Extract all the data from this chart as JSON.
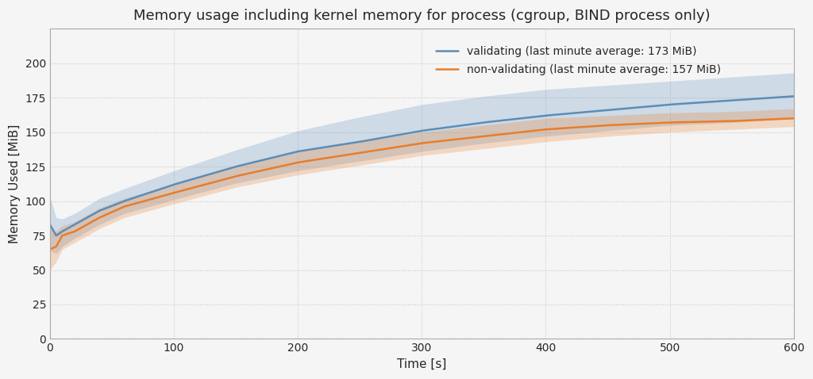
{
  "title": "Memory usage including kernel memory for process (cgroup, BIND process only)",
  "xlabel": "Time [s]",
  "ylabel": "Memory Used [MiB]",
  "xlim": [
    0,
    600
  ],
  "ylim": [
    0,
    225
  ],
  "yticks": [
    0,
    25,
    50,
    75,
    100,
    125,
    150,
    175,
    200
  ],
  "xticks": [
    0,
    100,
    200,
    300,
    400,
    500,
    600
  ],
  "blue_color": "#5b8db8",
  "orange_color": "#e87d2b",
  "blue_fill_alpha": 0.25,
  "orange_fill_alpha": 0.25,
  "legend_labels": [
    "validating (last minute average: 173 MiB)",
    "non-validating (last minute average: 157 MiB)"
  ],
  "background_color": "#f5f5f5",
  "plot_bg_color": "#f5f5f5",
  "grid_color": "#c8c8c8",
  "title_fontsize": 13,
  "axis_label_fontsize": 11,
  "tick_fontsize": 10,
  "legend_fontsize": 10,
  "blue_mean_pts": [
    [
      0,
      83
    ],
    [
      5,
      75
    ],
    [
      10,
      78
    ],
    [
      20,
      83
    ],
    [
      40,
      93
    ],
    [
      60,
      100
    ],
    [
      100,
      112
    ],
    [
      150,
      125
    ],
    [
      200,
      136
    ],
    [
      250,
      143
    ],
    [
      300,
      151
    ],
    [
      350,
      157
    ],
    [
      400,
      162
    ],
    [
      450,
      166
    ],
    [
      500,
      170
    ],
    [
      550,
      173
    ],
    [
      600,
      176
    ]
  ],
  "orange_mean_pts": [
    [
      0,
      65
    ],
    [
      5,
      67
    ],
    [
      10,
      75
    ],
    [
      20,
      78
    ],
    [
      40,
      88
    ],
    [
      60,
      96
    ],
    [
      100,
      106
    ],
    [
      150,
      118
    ],
    [
      200,
      128
    ],
    [
      250,
      135
    ],
    [
      300,
      142
    ],
    [
      350,
      147
    ],
    [
      400,
      152
    ],
    [
      450,
      155
    ],
    [
      500,
      157
    ],
    [
      550,
      158
    ],
    [
      600,
      160
    ]
  ],
  "blue_upper_pts": [
    [
      0,
      103
    ],
    [
      5,
      88
    ],
    [
      10,
      87
    ],
    [
      20,
      91
    ],
    [
      40,
      102
    ],
    [
      60,
      109
    ],
    [
      100,
      122
    ],
    [
      150,
      137
    ],
    [
      200,
      151
    ],
    [
      250,
      161
    ],
    [
      300,
      170
    ],
    [
      350,
      176
    ],
    [
      400,
      181
    ],
    [
      450,
      184
    ],
    [
      500,
      187
    ],
    [
      550,
      190
    ],
    [
      600,
      193
    ]
  ],
  "blue_lower_pts": [
    [
      0,
      64
    ],
    [
      5,
      62
    ],
    [
      10,
      67
    ],
    [
      20,
      73
    ],
    [
      40,
      83
    ],
    [
      60,
      91
    ],
    [
      100,
      101
    ],
    [
      150,
      113
    ],
    [
      200,
      122
    ],
    [
      250,
      129
    ],
    [
      300,
      136
    ],
    [
      350,
      142
    ],
    [
      400,
      147
    ],
    [
      450,
      151
    ],
    [
      500,
      155
    ],
    [
      550,
      157
    ],
    [
      600,
      160
    ]
  ],
  "orange_upper_pts": [
    [
      0,
      80
    ],
    [
      5,
      78
    ],
    [
      10,
      82
    ],
    [
      20,
      85
    ],
    [
      40,
      95
    ],
    [
      60,
      102
    ],
    [
      100,
      112
    ],
    [
      150,
      125
    ],
    [
      200,
      136
    ],
    [
      250,
      143
    ],
    [
      300,
      150
    ],
    [
      350,
      155
    ],
    [
      400,
      160
    ],
    [
      450,
      162
    ],
    [
      500,
      164
    ],
    [
      550,
      165
    ],
    [
      600,
      167
    ]
  ],
  "orange_lower_pts": [
    [
      0,
      50
    ],
    [
      5,
      56
    ],
    [
      10,
      65
    ],
    [
      20,
      70
    ],
    [
      40,
      80
    ],
    [
      60,
      88
    ],
    [
      100,
      98
    ],
    [
      150,
      110
    ],
    [
      200,
      119
    ],
    [
      250,
      126
    ],
    [
      300,
      133
    ],
    [
      350,
      138
    ],
    [
      400,
      143
    ],
    [
      450,
      147
    ],
    [
      500,
      150
    ],
    [
      550,
      152
    ],
    [
      600,
      154
    ]
  ]
}
